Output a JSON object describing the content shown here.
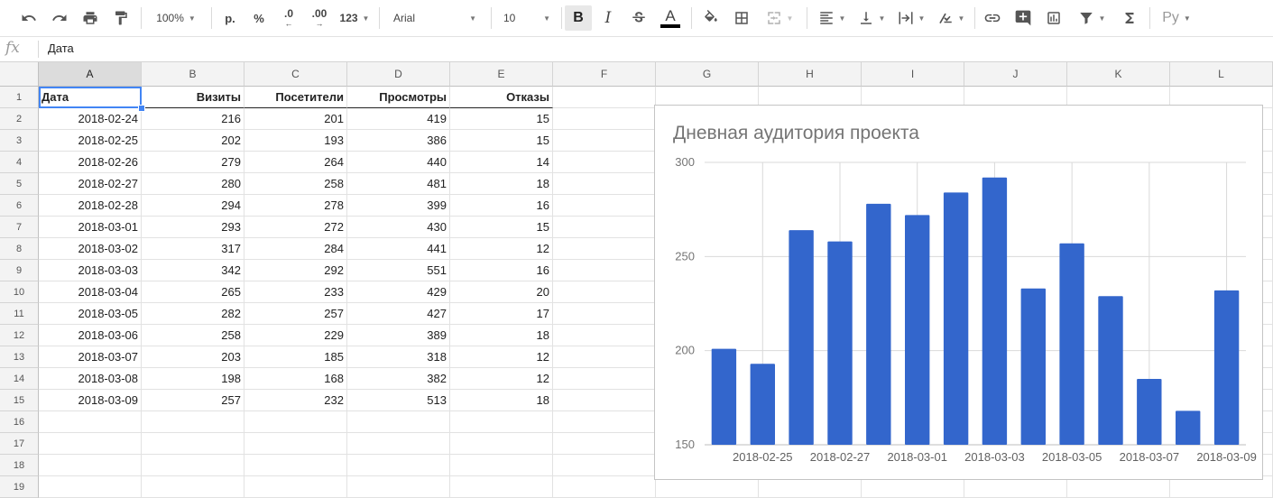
{
  "toolbar": {
    "zoom": "100%",
    "currency": "р.",
    "percent": "%",
    "decrease_decimals": ".0",
    "increase_decimals": ".00",
    "more_formats": "123",
    "font": "Arial",
    "font_size": "10",
    "bold": "B",
    "italic": "I",
    "text_color_letter": "A",
    "input_tools": "Ру",
    "icons": [
      "undo-icon",
      "redo-icon",
      "print-icon",
      "paint-format-icon",
      "bold-icon",
      "italic-icon",
      "strikethrough-icon",
      "text-color-icon",
      "fill-color-icon",
      "borders-icon",
      "merge-cells-icon",
      "horizontal-align-icon",
      "vertical-align-icon",
      "text-wrap-icon",
      "text-rotation-icon",
      "link-icon",
      "comment-icon",
      "chart-icon",
      "filter-icon",
      "functions-icon"
    ]
  },
  "formula_bar": {
    "fx_label": "fx",
    "value": "Дата"
  },
  "grid": {
    "columns": [
      "A",
      "B",
      "C",
      "D",
      "E",
      "F",
      "G",
      "H",
      "I",
      "J",
      "K",
      "L"
    ],
    "selected_column": "A",
    "row_numbers": [
      "1",
      "2",
      "3",
      "4",
      "5",
      "6",
      "7",
      "8",
      "9",
      "10",
      "11",
      "12",
      "13",
      "14",
      "15",
      "16",
      "17",
      "18",
      "19"
    ],
    "headers": [
      "Дата",
      "Визиты",
      "Посетители",
      "Просмотры",
      "Отказы"
    ],
    "rows": [
      [
        "2018-02-24",
        "216",
        "201",
        "419",
        "15"
      ],
      [
        "2018-02-25",
        "202",
        "193",
        "386",
        "15"
      ],
      [
        "2018-02-26",
        "279",
        "264",
        "440",
        "14"
      ],
      [
        "2018-02-27",
        "280",
        "258",
        "481",
        "18"
      ],
      [
        "2018-02-28",
        "294",
        "278",
        "399",
        "16"
      ],
      [
        "2018-03-01",
        "293",
        "272",
        "430",
        "15"
      ],
      [
        "2018-03-02",
        "317",
        "284",
        "441",
        "12"
      ],
      [
        "2018-03-03",
        "342",
        "292",
        "551",
        "16"
      ],
      [
        "2018-03-04",
        "265",
        "233",
        "429",
        "20"
      ],
      [
        "2018-03-05",
        "282",
        "257",
        "427",
        "17"
      ],
      [
        "2018-03-06",
        "258",
        "229",
        "389",
        "18"
      ],
      [
        "2018-03-07",
        "203",
        "185",
        "318",
        "12"
      ],
      [
        "2018-03-08",
        "198",
        "168",
        "382",
        "12"
      ],
      [
        "2018-03-09",
        "257",
        "232",
        "513",
        "18"
      ]
    ]
  },
  "chart_data": {
    "type": "bar",
    "title": "Дневная аудитория проекта",
    "categories": [
      "2018-02-24",
      "2018-02-25",
      "2018-02-26",
      "2018-02-27",
      "2018-02-28",
      "2018-03-01",
      "2018-03-02",
      "2018-03-03",
      "2018-03-04",
      "2018-03-05",
      "2018-03-06",
      "2018-03-07",
      "2018-03-08",
      "2018-03-09"
    ],
    "x_tick_labels": [
      "2018-02-25",
      "2018-02-27",
      "2018-03-01",
      "2018-03-03",
      "2018-03-05",
      "2018-03-07",
      "2018-03-09"
    ],
    "series": [
      {
        "values": [
          201,
          193,
          264,
          258,
          278,
          272,
          284,
          292,
          233,
          257,
          229,
          185,
          168,
          232
        ],
        "color": "#3366cc"
      }
    ],
    "ylim": [
      150,
      300
    ],
    "y_ticks": [
      150,
      200,
      250,
      300
    ],
    "grid": true,
    "legend": "none"
  }
}
